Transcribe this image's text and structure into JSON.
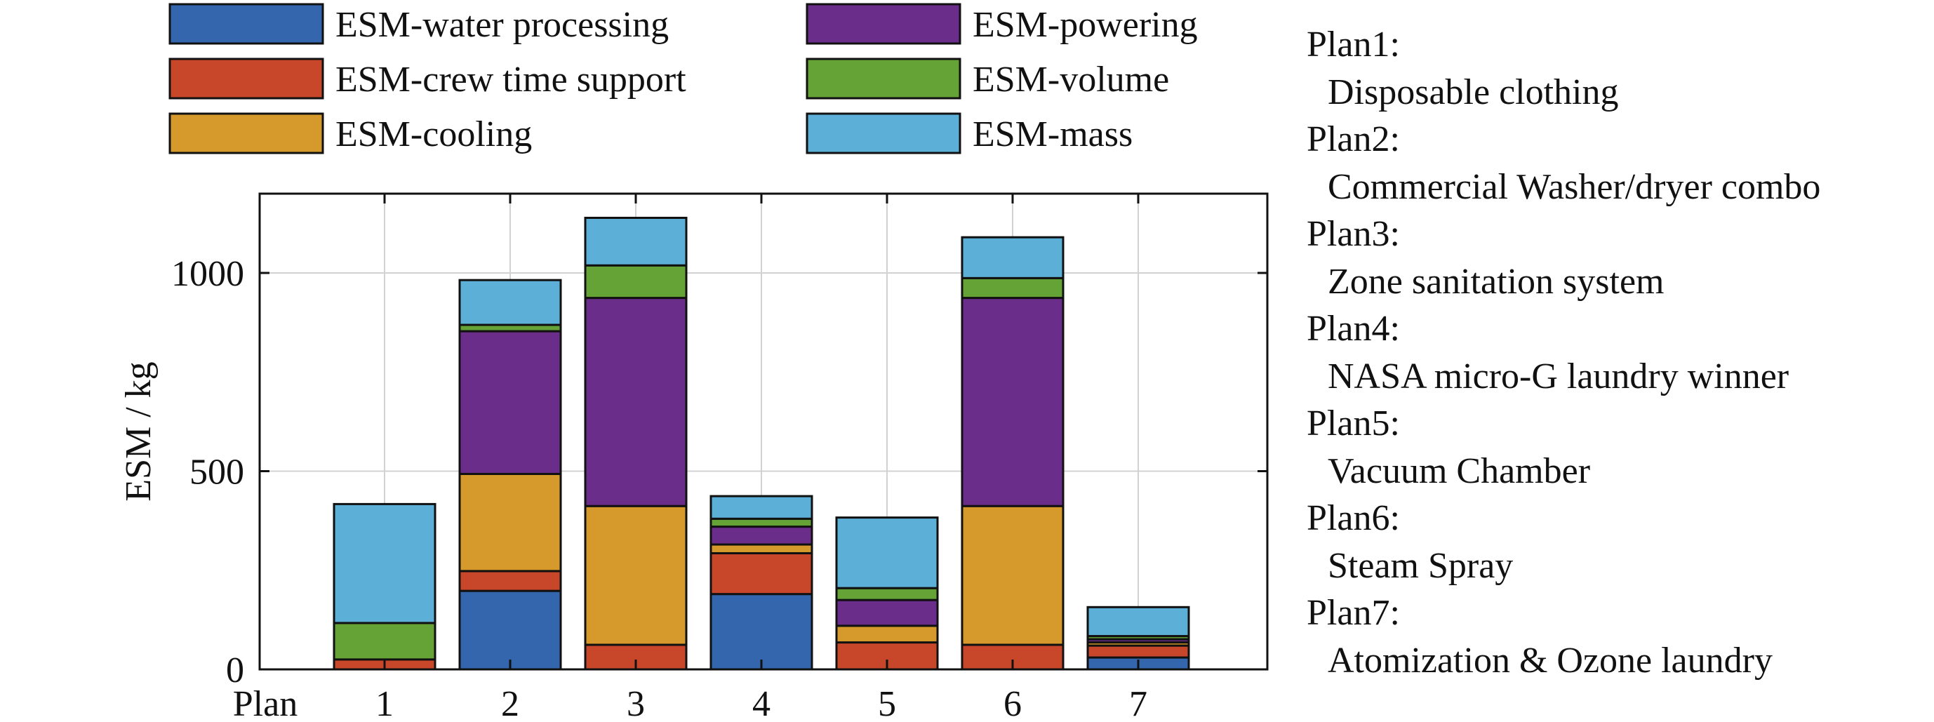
{
  "chart_data": {
    "type": "bar",
    "stacked": true,
    "categories": [
      "1",
      "2",
      "3",
      "4",
      "5",
      "6",
      "7"
    ],
    "xlabel": "Plan",
    "ylabel": "ESM / kg",
    "ylim": [
      0,
      1200
    ],
    "yticks": [
      0,
      500,
      1000
    ],
    "grid": true,
    "legend_position": "top",
    "series": [
      {
        "name": "ESM-water processing",
        "color": "#3466ae",
        "values": [
          0,
          198,
          0,
          190,
          0,
          0,
          30
        ]
      },
      {
        "name": "ESM-crew time support",
        "color": "#c8462a",
        "values": [
          25,
          50,
          62,
          103,
          68,
          62,
          30
        ]
      },
      {
        "name": "ESM-cooling",
        "color": "#d59a2b",
        "values": [
          0,
          245,
          350,
          22,
          42,
          350,
          8
        ]
      },
      {
        "name": "ESM-powering",
        "color": "#6b2d8a",
        "values": [
          0,
          360,
          525,
          45,
          65,
          525,
          8
        ]
      },
      {
        "name": "ESM-volume",
        "color": "#65a336",
        "values": [
          92,
          16,
          82,
          20,
          30,
          50,
          8
        ]
      },
      {
        "name": "ESM-mass",
        "color": "#5cafd6",
        "values": [
          300,
          113,
          120,
          57,
          178,
          103,
          73
        ]
      }
    ]
  },
  "plans": [
    {
      "label": "Plan1:",
      "name": "Disposable clothing"
    },
    {
      "label": "Plan2:",
      "name": "Commercial Washer/dryer combo"
    },
    {
      "label": "Plan3:",
      "name": "Zone sanitation system"
    },
    {
      "label": "Plan4:",
      "name": "NASA micro-G laundry winner"
    },
    {
      "label": "Plan5:",
      "name": "Vacuum Chamber"
    },
    {
      "label": "Plan6:",
      "name": "Steam Spray"
    },
    {
      "label": "Plan7:",
      "name": "Atomization & Ozone laundry"
    }
  ]
}
